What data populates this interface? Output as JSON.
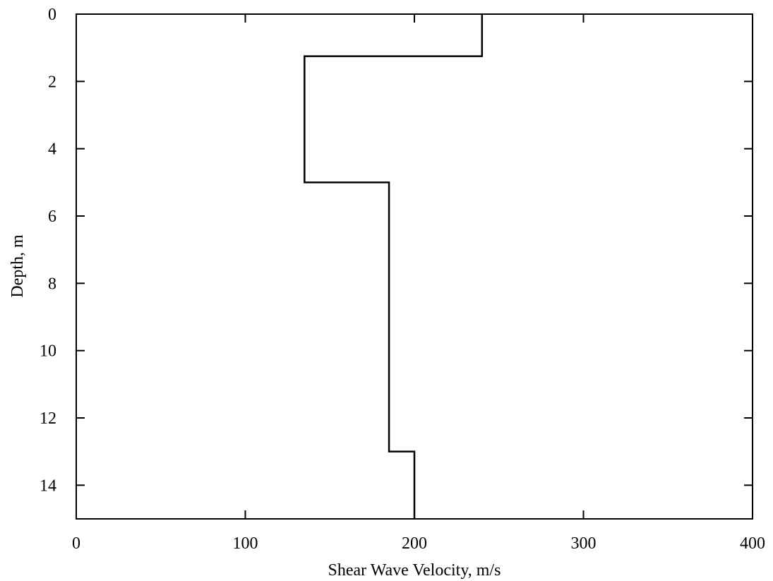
{
  "chart_data": {
    "type": "line",
    "title": "",
    "xlabel": "Shear Wave Velocity, m/s",
    "ylabel": "Depth, m",
    "xlim": [
      0,
      400
    ],
    "ylim": [
      0,
      15
    ],
    "y_inverted": true,
    "grid": false,
    "x_ticks": [
      "0",
      "100",
      "200",
      "300",
      "400"
    ],
    "y_ticks": [
      "0",
      "2",
      "4",
      "6",
      "8",
      "10",
      "12",
      "14"
    ],
    "series": [
      {
        "style": "step-profile",
        "color": "#000000",
        "points": [
          {
            "x": 240,
            "y": 0
          },
          {
            "x": 240,
            "y": 1.25
          },
          {
            "x": 135,
            "y": 1.25
          },
          {
            "x": 135,
            "y": 5
          },
          {
            "x": 185,
            "y": 5
          },
          {
            "x": 185,
            "y": 13
          },
          {
            "x": 200,
            "y": 13
          },
          {
            "x": 200,
            "y": 15
          }
        ]
      }
    ]
  }
}
